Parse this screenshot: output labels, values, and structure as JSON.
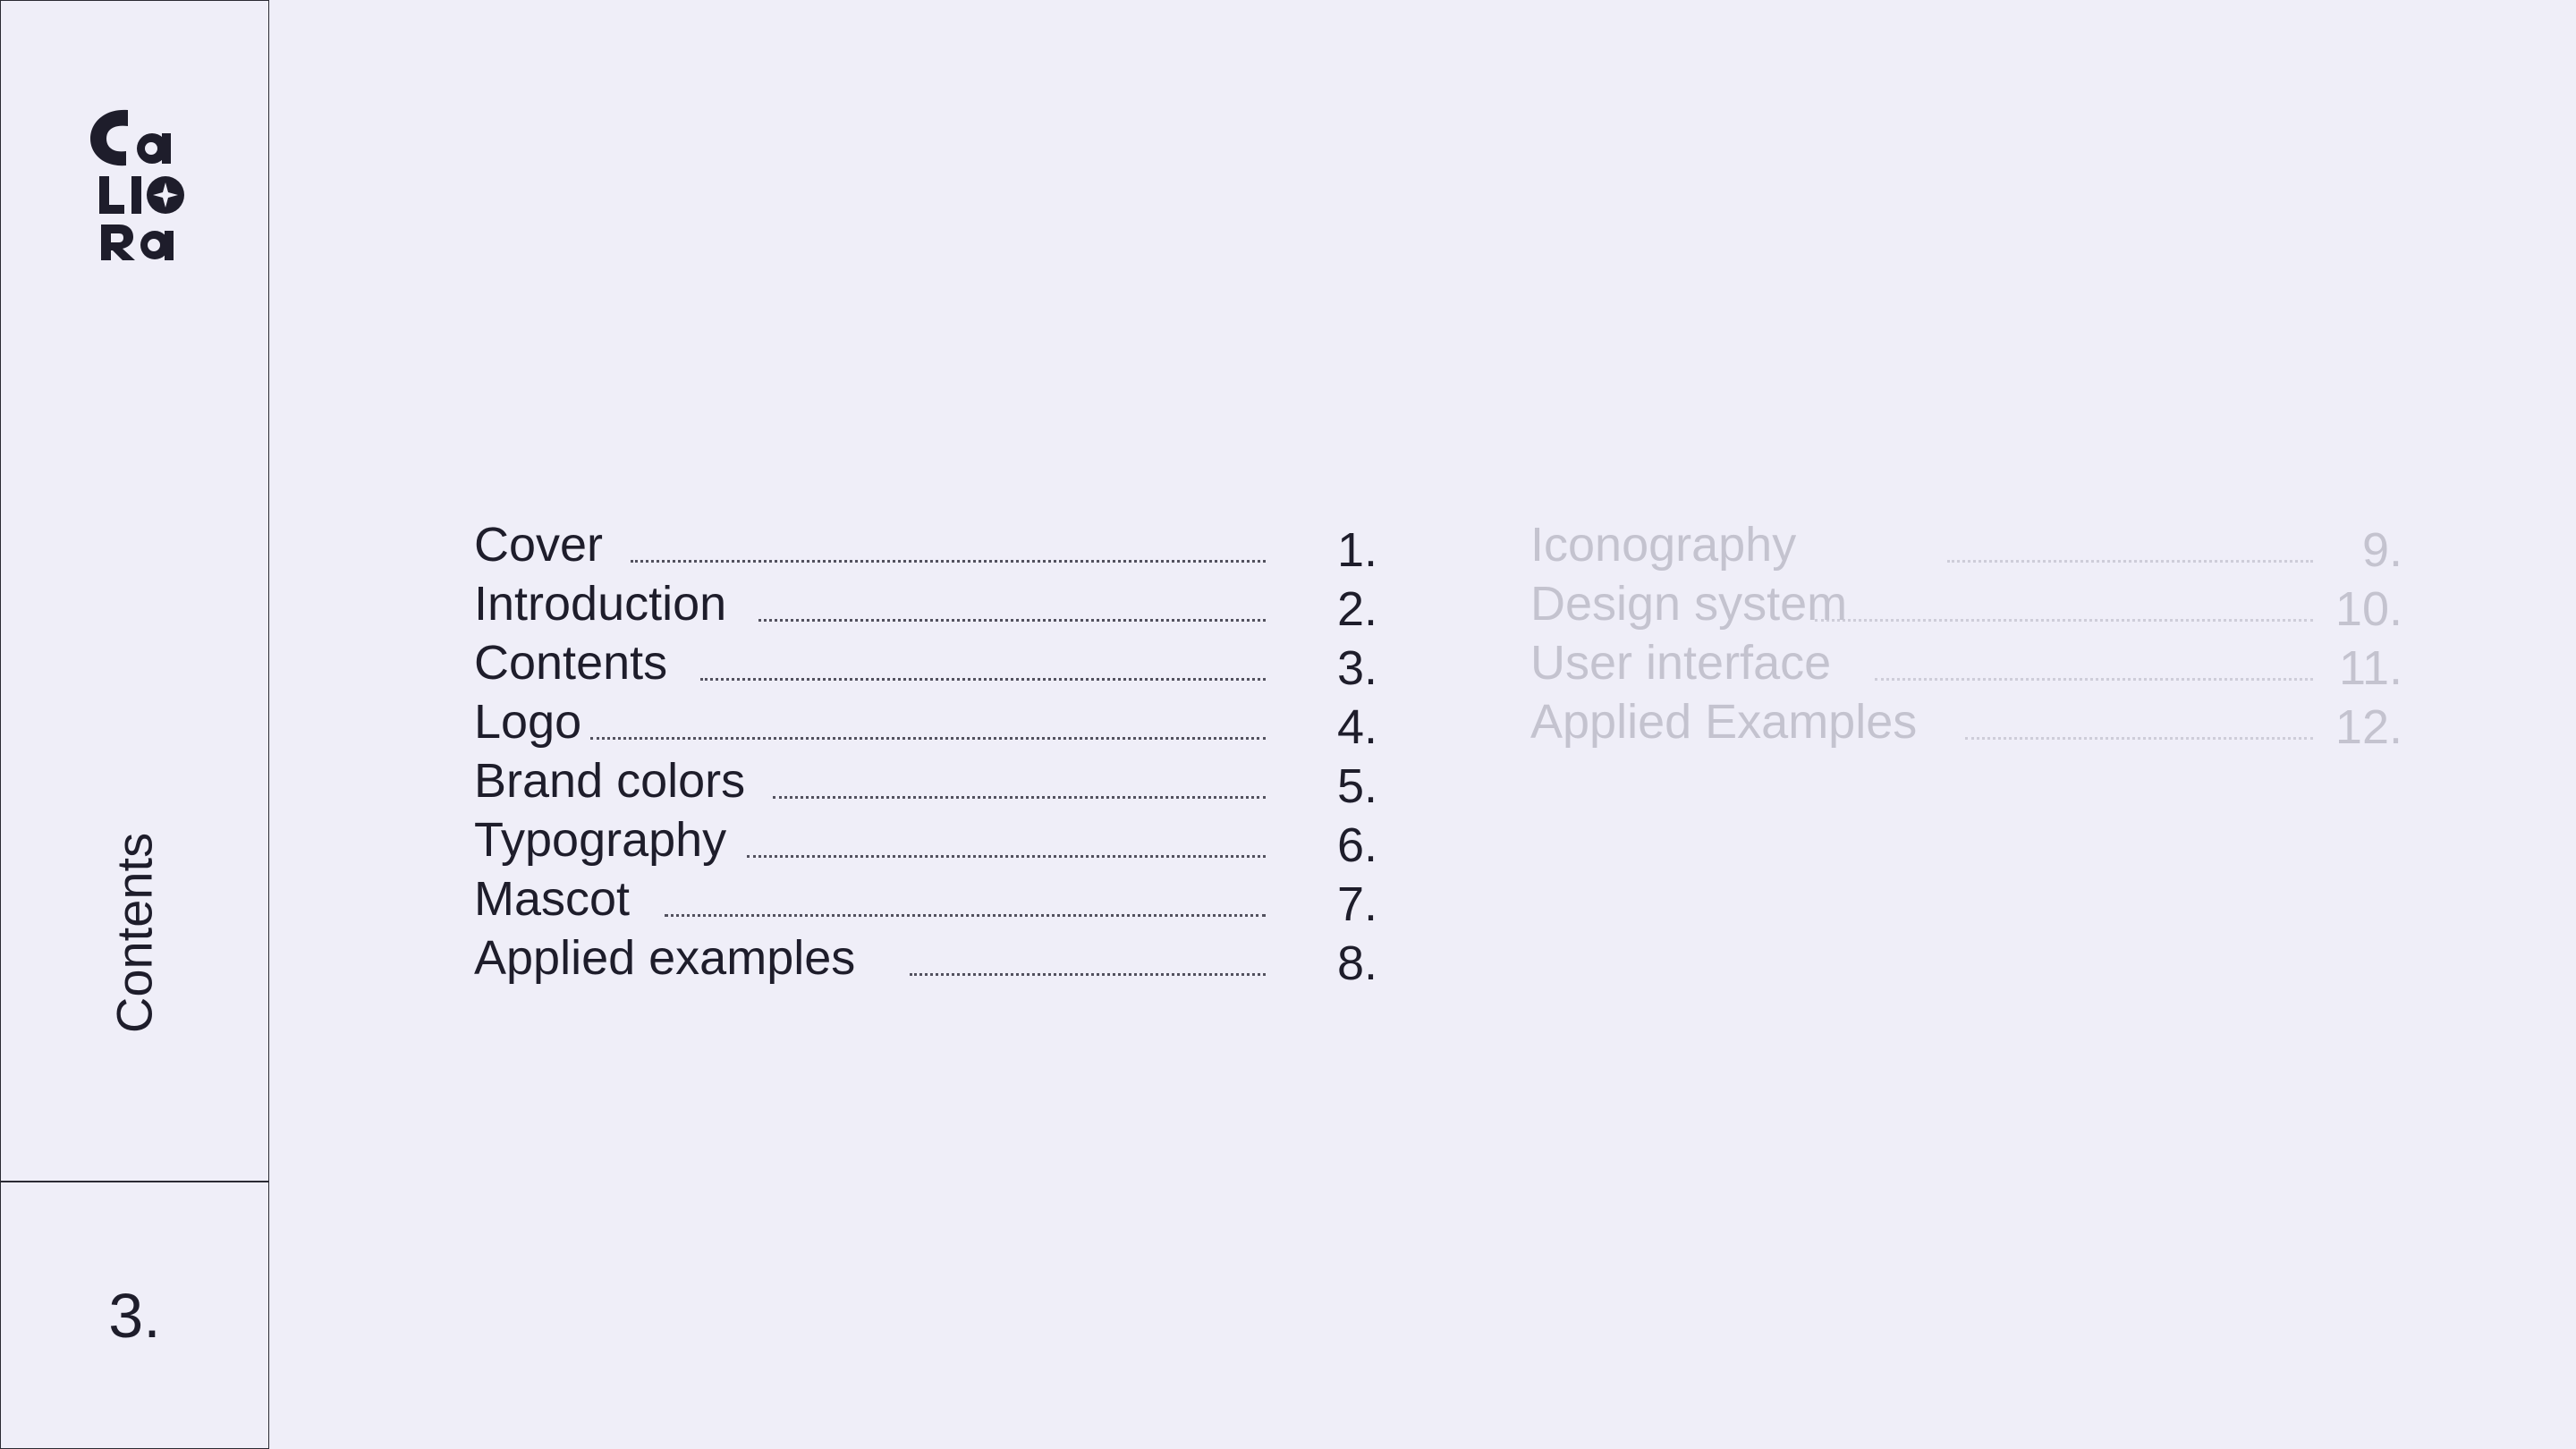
{
  "brand": {
    "logo_text_line1": "Ca",
    "logo_text_line2": "LIO",
    "logo_text_line3": "Ra",
    "logo_icon": "four-point-star-icon"
  },
  "sidebar": {
    "section_label": "Contents",
    "page_number": "3."
  },
  "contents": {
    "active": [
      {
        "title": "Cover",
        "page": "1."
      },
      {
        "title": "Introduction",
        "page": "2."
      },
      {
        "title": "Contents",
        "page": "3."
      },
      {
        "title": "Logo",
        "page": "4."
      },
      {
        "title": "Brand colors",
        "page": "5."
      },
      {
        "title": "Typography",
        "page": "6."
      },
      {
        "title": "Mascot",
        "page": "7."
      },
      {
        "title": "Applied examples",
        "page": "8."
      }
    ],
    "inactive": [
      {
        "title": "Iconography",
        "page": "9."
      },
      {
        "title": "Design system",
        "page": "10."
      },
      {
        "title": "User interface",
        "page": "11."
      },
      {
        "title": "Applied Examples",
        "page": "12."
      }
    ]
  },
  "colors": {
    "background": "#efeef8",
    "text": "#1e1d2b",
    "muted_text": "#c4c3cf",
    "border": "#2a2a33"
  }
}
